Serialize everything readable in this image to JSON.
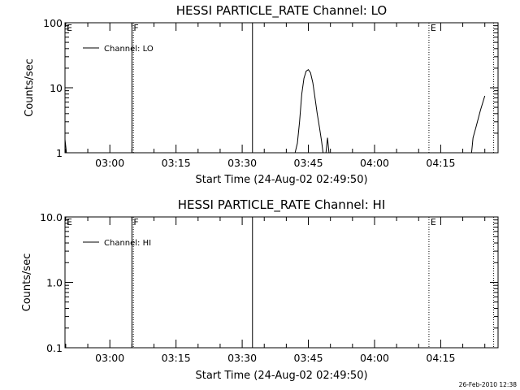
{
  "chart_data": [
    {
      "type": "line",
      "title": "HESSI PARTICLE_RATE Channel: LO",
      "xlabel": "Start Time (24-Aug-02 02:49:50)",
      "ylabel": "Counts/sec",
      "y_scale": "log",
      "ylim": [
        1,
        100
      ],
      "y_ticks": [
        1,
        10,
        100
      ],
      "y_tick_labels": [
        "1",
        "10",
        "100"
      ],
      "xlim": [
        "02:49:50",
        "04:28:00"
      ],
      "x_ticks": [
        "03:00",
        "03:15",
        "03:30",
        "03:45",
        "04:00",
        "04:15"
      ],
      "legend": {
        "position": "top-left",
        "entries": [
          "Channel: LO"
        ]
      },
      "series": [
        {
          "name": "Channel: LO",
          "segments": [
            [
              [
                "02:49:50",
                1.6
              ],
              [
                "02:50:10",
                1.0
              ]
            ],
            [
              [
                "03:42:00",
                1.0
              ],
              [
                "03:42:30",
                1.4
              ],
              [
                "03:43:00",
                3.0
              ],
              [
                "03:43:30",
                8.0
              ],
              [
                "03:44:00",
                14.0
              ],
              [
                "03:44:30",
                18.0
              ],
              [
                "03:45:00",
                19.0
              ],
              [
                "03:45:30",
                17.0
              ],
              [
                "03:46:00",
                12.0
              ],
              [
                "03:46:30",
                7.0
              ],
              [
                "03:47:00",
                4.0
              ],
              [
                "03:47:30",
                2.5
              ],
              [
                "03:48:00",
                1.5
              ],
              [
                "03:48:20",
                1.0
              ]
            ],
            [
              [
                "03:49:00",
                1.0
              ],
              [
                "03:49:20",
                1.7
              ],
              [
                "03:49:40",
                1.0
              ]
            ],
            [
              [
                "04:22:00",
                1.0
              ],
              [
                "04:22:20",
                1.7
              ],
              [
                "04:23:00",
                2.5
              ],
              [
                "04:24:00",
                4.5
              ],
              [
                "04:25:00",
                7.5
              ]
            ]
          ]
        }
      ],
      "markers": [
        {
          "time": "02:49:50",
          "label": "E",
          "style": "dotted"
        },
        {
          "time": "03:05:00",
          "label": "F",
          "style": "solid"
        },
        {
          "time": "03:05:20",
          "label": "",
          "style": "dotted"
        },
        {
          "time": "03:32:20",
          "label": "",
          "style": "solid"
        },
        {
          "time": "04:12:20",
          "label": "E",
          "style": "dotted"
        },
        {
          "time": "04:27:00",
          "label": "",
          "style": "dotted"
        }
      ]
    },
    {
      "type": "line",
      "title": "HESSI PARTICLE_RATE Channel: HI",
      "xlabel": "Start Time (24-Aug-02 02:49:50)",
      "ylabel": "Counts/sec",
      "y_scale": "log",
      "ylim": [
        0.1,
        10.0
      ],
      "y_ticks": [
        0.1,
        1.0,
        10.0
      ],
      "y_tick_labels": [
        "0.1",
        "1.0",
        "10.0"
      ],
      "xlim": [
        "02:49:50",
        "04:28:00"
      ],
      "x_ticks": [
        "03:00",
        "03:15",
        "03:30",
        "03:45",
        "04:00",
        "04:15"
      ],
      "legend": {
        "position": "top-left",
        "entries": [
          "Channel: HI"
        ]
      },
      "series": [
        {
          "name": "Channel: HI",
          "segments": []
        }
      ],
      "markers": [
        {
          "time": "02:49:50",
          "label": "E",
          "style": "dotted"
        },
        {
          "time": "03:05:00",
          "label": "F",
          "style": "solid"
        },
        {
          "time": "03:05:20",
          "label": "",
          "style": "dotted"
        },
        {
          "time": "03:32:20",
          "label": "",
          "style": "solid"
        },
        {
          "time": "04:12:20",
          "label": "E",
          "style": "dotted"
        },
        {
          "time": "04:27:00",
          "label": "",
          "style": "dotted"
        }
      ]
    }
  ],
  "footer": {
    "timestamp": "26-Feb-2010 12:38"
  }
}
